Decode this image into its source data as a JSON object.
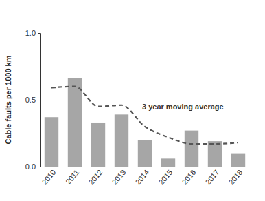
{
  "chart_data": {
    "type": "bar",
    "y_label": "Cable faults per 1000 km",
    "categories": [
      "2010",
      "2011",
      "2012",
      "2013",
      "2014",
      "2015",
      "2016",
      "2017",
      "2018"
    ],
    "series": [
      {
        "type": "bar",
        "color": "#a6a6a6",
        "values": [
          0.37,
          0.66,
          0.33,
          0.39,
          0.2,
          0.06,
          0.27,
          0.19,
          0.1
        ]
      },
      {
        "type": "line",
        "name": "3 year moving average",
        "color": "#555555",
        "line_style": "dashed",
        "values": [
          0.59,
          0.6,
          0.45,
          0.46,
          0.3,
          0.22,
          0.17,
          0.17,
          0.18
        ]
      }
    ],
    "ylim": [
      0,
      1
    ],
    "yticks": [
      {
        "value": 0,
        "label": "0.0"
      },
      0.5,
      {
        "value": 1,
        "label": "1.0"
      }
    ],
    "grid": false
  }
}
